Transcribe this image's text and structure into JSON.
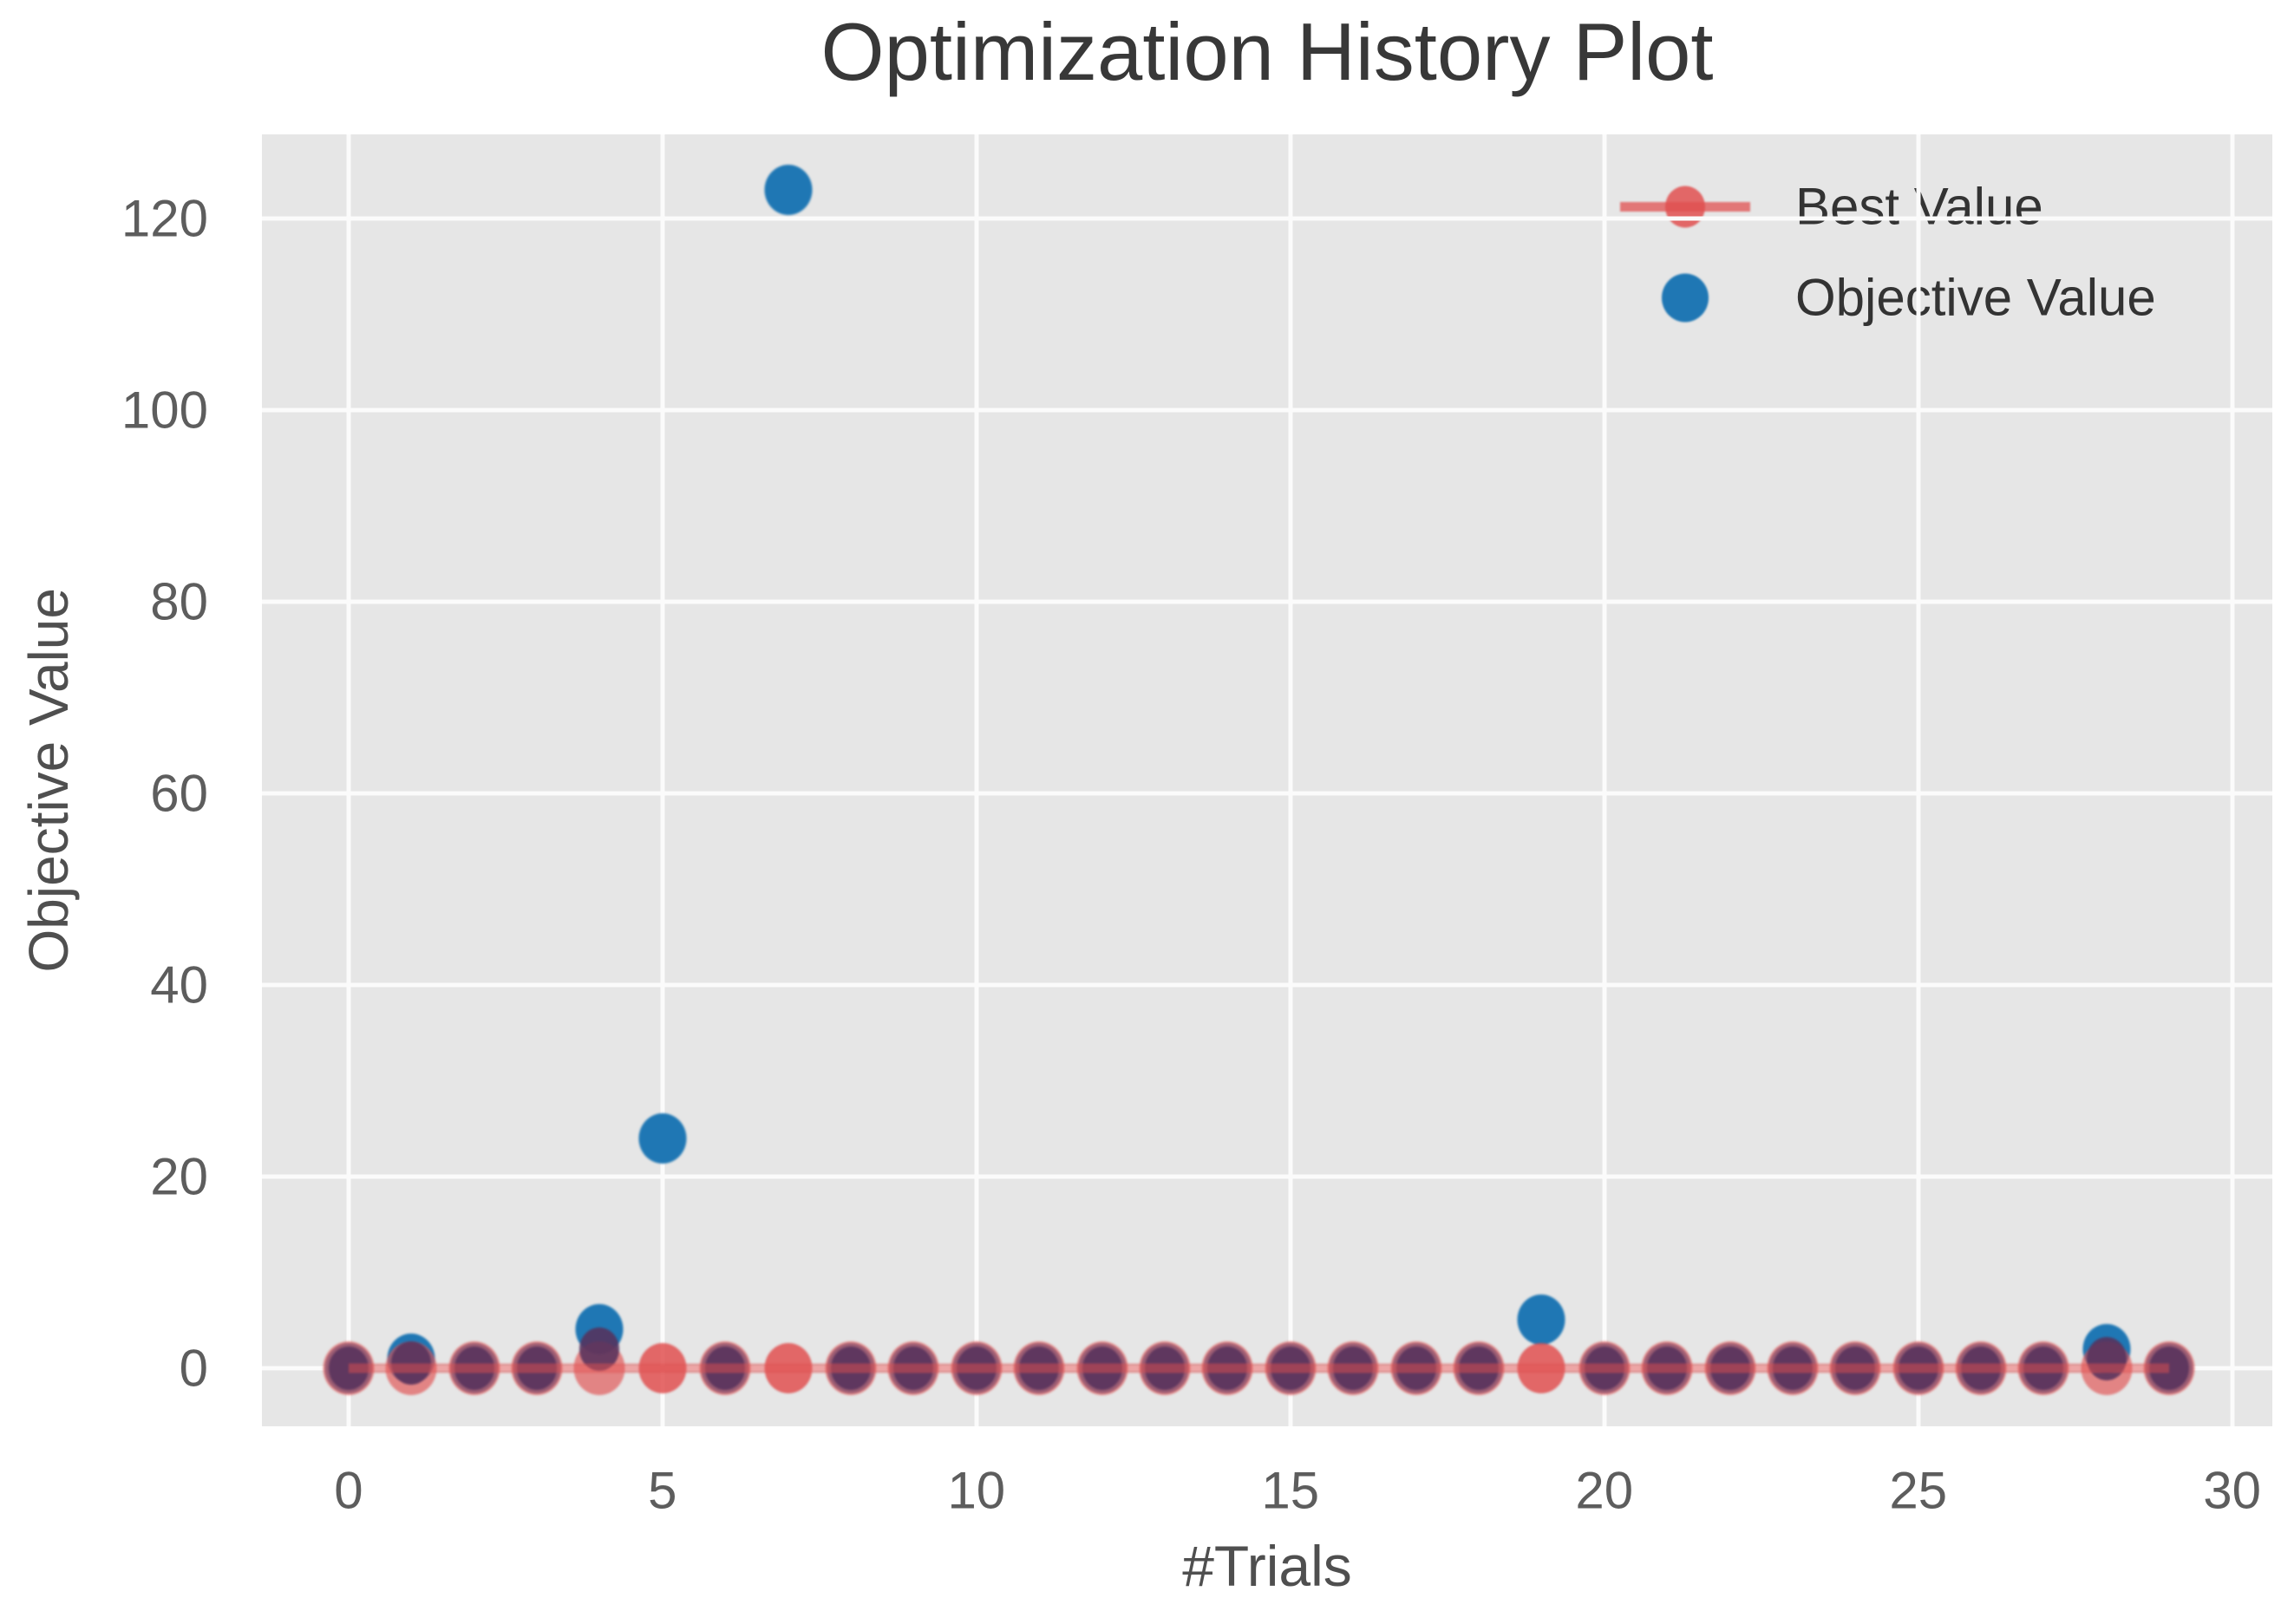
{
  "chart_data": {
    "type": "scatter",
    "title": "Optimization History Plot",
    "xlabel": "#Trials",
    "ylabel": "Objective Value",
    "x": [
      0,
      1,
      2,
      3,
      4,
      5,
      6,
      7,
      8,
      9,
      10,
      11,
      12,
      13,
      14,
      15,
      16,
      17,
      18,
      19,
      20,
      21,
      22,
      23,
      24,
      25,
      26,
      27,
      28,
      29
    ],
    "series": [
      {
        "name": "Best Value",
        "type": "line+markers",
        "color": "#e05050",
        "values": [
          0,
          0,
          0,
          0,
          0,
          0,
          0,
          0,
          0,
          0,
          0,
          0,
          0,
          0,
          0,
          0,
          0,
          0,
          0,
          0,
          0,
          0,
          0,
          0,
          0,
          0,
          0,
          0,
          0,
          0
        ]
      },
      {
        "name": "Objective Value",
        "type": "markers",
        "color": "#1f77b4",
        "values": [
          0,
          1,
          0,
          0,
          4,
          24,
          0,
          123,
          0,
          0,
          0,
          0,
          0,
          0,
          0,
          0,
          0,
          0,
          0,
          5,
          0,
          0,
          0,
          0,
          0,
          0,
          0,
          0,
          2,
          0
        ]
      }
    ],
    "xticks": [
      0,
      5,
      10,
      15,
      20,
      25,
      30
    ],
    "yticks": [
      0,
      20,
      40,
      60,
      80,
      100,
      120
    ],
    "xlim": [
      -1.38,
      30.64
    ],
    "ylim": [
      -6.1,
      128.8
    ],
    "grid": true,
    "grid_color": "#ffffff",
    "plot_bg": "#e6e6e6",
    "legend_position": "upper right"
  },
  "legend": {
    "rows": [
      {
        "label": "Best Value",
        "marker": "red-line-dot-icon"
      },
      {
        "label": "Objective Value",
        "marker": "blue-dot-icon"
      }
    ]
  },
  "colors": {
    "objective_blue": "#1f77b4",
    "best_red": "#e05050",
    "overlap_purple": "#56325c",
    "plot_background": "#e6e6e6",
    "gridline": "#fbfbfb",
    "title_text": "#383838",
    "tick_text": "#5d5d5d"
  }
}
